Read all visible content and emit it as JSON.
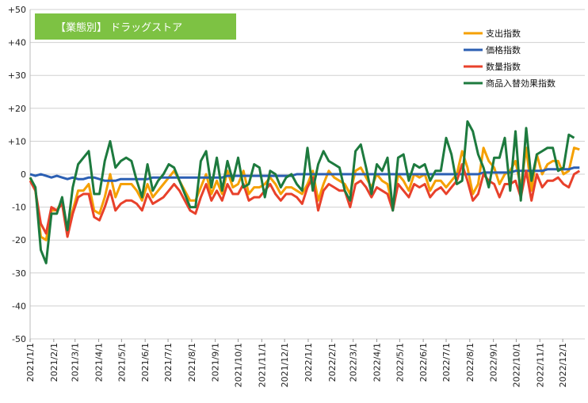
{
  "chart_data": {
    "type": "line",
    "title": "【業態別】 ドラッグストア",
    "ylim": [
      -50,
      50
    ],
    "yticks": [
      50,
      40,
      30,
      20,
      10,
      0,
      -10,
      -20,
      -30,
      -40,
      -50
    ],
    "ytick_labels": [
      "+50",
      "+40",
      "+30",
      "+20",
      "+10",
      "0",
      "-10",
      "-20",
      "-30",
      "-40",
      "-50"
    ],
    "xlim": [
      0,
      104
    ],
    "xtick_positions": [
      0,
      4.43,
      8.43,
      12.86,
      17.14,
      21.57,
      25.86,
      30.29,
      34.71,
      39.0,
      43.43,
      47.71,
      52.14,
      56.57,
      60.57,
      65.0,
      69.29,
      73.71,
      78.0,
      82.43,
      86.86,
      91.14,
      95.57,
      99.86
    ],
    "xtick_labels": [
      "2021/1/1",
      "2021/2/1",
      "2021/3/1",
      "2021/4/1",
      "2021/5/1",
      "2021/6/1",
      "2021/7/1",
      "2021/8/1",
      "2021/9/1",
      "2021/10/1",
      "2021/11/1",
      "2021/12/1",
      "2022/1/1",
      "2022/2/1",
      "2022/3/1",
      "2022/4/1",
      "2022/5/1",
      "2022/6/1",
      "2022/7/1",
      "2022/8/1",
      "2022/9/1",
      "2022/10/1",
      "2022/11/1",
      "2022/12/1"
    ],
    "grid": "horizontal",
    "legend_position": "top-right",
    "series": [
      {
        "name": "支出指数",
        "color": "#f5a000",
        "values": [
          -1,
          -5,
          -19,
          -20,
          -11,
          -11,
          -8,
          -17,
          -11,
          -5,
          -5,
          -3,
          -11,
          -12,
          -7,
          0,
          -7,
          -3,
          -3,
          -3,
          -5,
          -8,
          -3,
          -7,
          -5,
          -3,
          -1,
          1,
          -2,
          -5,
          -8,
          -8,
          -4,
          0,
          -6,
          -2,
          -6,
          1,
          -4,
          -3,
          1,
          -6,
          -4,
          -4,
          -3,
          -1,
          -3,
          -6,
          -4,
          -4,
          -5,
          -6,
          -3,
          1,
          -8,
          -3,
          1,
          -1,
          -2,
          -3,
          -6,
          1,
          2,
          -1,
          -4,
          0,
          -2,
          -3,
          -10,
          0,
          -2,
          -5,
          0,
          -1,
          0,
          -5,
          -2,
          -2,
          -4,
          -2,
          0,
          7,
          2,
          -6,
          -3,
          8,
          4,
          2,
          -3,
          0,
          1,
          4,
          -4,
          8,
          -5,
          6,
          0,
          3,
          4,
          4,
          0,
          1,
          8,
          7.5
        ]
      },
      {
        "name": "価格指数",
        "color": "#2b5fb3",
        "values": [
          0,
          -0.5,
          0,
          -0.5,
          -1,
          -0.5,
          -1,
          -1.5,
          -1,
          -1.5,
          -1.5,
          -1,
          -1,
          -1.5,
          -2,
          -2,
          -2,
          -1.5,
          -1.5,
          -1.5,
          -1.5,
          -1.5,
          -1.5,
          -1,
          -1,
          -1,
          -1,
          -1,
          -1,
          -1,
          -1,
          -1,
          -1,
          -1,
          -1,
          -1,
          -1,
          -0.5,
          -0.5,
          -0.5,
          -0.5,
          -0.5,
          -0.5,
          -0.5,
          -0.5,
          -0.5,
          -0.5,
          -0.5,
          -0.5,
          -0.5,
          0,
          0,
          0,
          0,
          0,
          0,
          0,
          0,
          0,
          0,
          0,
          0,
          0,
          0,
          0,
          0,
          0,
          0,
          0,
          0,
          0,
          0,
          0,
          0,
          0,
          0,
          0,
          0,
          0,
          0,
          0,
          0,
          0,
          0,
          0,
          0.5,
          0.5,
          0.5,
          0.5,
          0.5,
          0.5,
          1,
          1,
          1,
          1,
          1,
          1,
          1.5,
          1.5,
          1.5,
          1.5,
          1.5,
          2,
          2
        ]
      },
      {
        "name": "数量指数",
        "color": "#e8412b",
        "values": [
          -2,
          -5,
          -15,
          -18,
          -10,
          -11,
          -9,
          -19,
          -12,
          -7,
          -6,
          -6,
          -13,
          -14,
          -10,
          -5,
          -11,
          -9,
          -8,
          -8,
          -9,
          -11,
          -6,
          -9,
          -8,
          -7,
          -5,
          -3,
          -5,
          -8,
          -11,
          -12,
          -7,
          -3,
          -8,
          -5,
          -8,
          -3,
          -6,
          -6,
          -3,
          -8,
          -7,
          -7,
          -5,
          -3,
          -6,
          -8,
          -6,
          -6,
          -7,
          -9,
          -4,
          -1,
          -11,
          -5,
          -3,
          -4,
          -5,
          -5,
          -10,
          -3,
          -2,
          -4,
          -7,
          -4,
          -5,
          -6,
          -11,
          -3,
          -5,
          -7,
          -3,
          -4,
          -3,
          -7,
          -5,
          -4,
          -6,
          -4,
          -2,
          3,
          -2,
          -8,
          -6,
          0,
          -2,
          -3,
          -7,
          -3,
          -3,
          -2,
          -7,
          1,
          -8,
          0,
          -4,
          -2,
          -2,
          -1,
          -3,
          -4,
          0,
          1
        ]
      },
      {
        "name": "商品入替効果指数",
        "color": "#1d7a3e",
        "values": [
          -1,
          -4,
          -23,
          -27,
          -12,
          -12,
          -7,
          -17,
          -4,
          3,
          5,
          7,
          -6,
          -6,
          4,
          10,
          2,
          4,
          5,
          4,
          -2,
          -7,
          3,
          -5,
          -2,
          0,
          3,
          2,
          -2,
          -6,
          -10,
          -10,
          4,
          7,
          -4,
          5,
          -5,
          4,
          -2,
          5,
          -4,
          -3,
          3,
          2,
          -7,
          1,
          0,
          -4,
          -1,
          0,
          -3,
          -5,
          8,
          -5,
          3,
          7,
          4,
          3,
          2,
          -5,
          -8,
          7,
          9,
          2,
          -6,
          3,
          1,
          5,
          -11,
          5,
          6,
          -2,
          3,
          2,
          3,
          -2,
          1,
          1,
          11,
          6,
          -3,
          -2,
          16,
          13,
          6,
          2,
          -4,
          5,
          5,
          11,
          -5,
          13,
          -8,
          14,
          -2,
          6,
          7,
          8,
          8,
          1,
          2,
          12,
          11
        ]
      }
    ]
  }
}
